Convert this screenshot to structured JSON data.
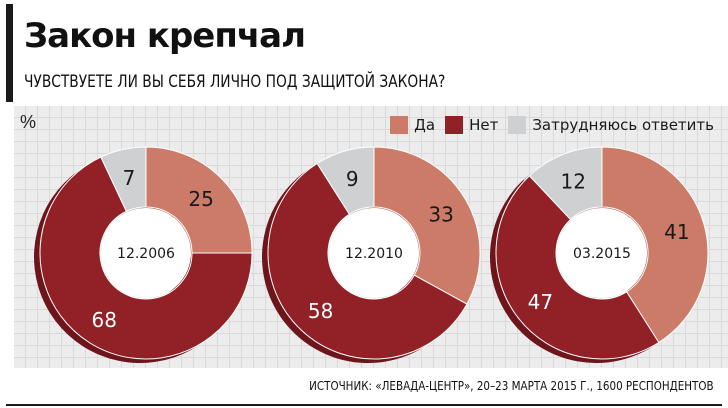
{
  "title": "Закон крепчал",
  "subtitle": "ЧУВСТВУЕТЕ ЛИ ВЫ СЕБЯ ЛИЧНО ПОД ЗАЩИТОЙ ЗАКОНА?",
  "unit_label": "%",
  "source": "ИСТОЧНИК: «ЛЕВАДА-ЦЕНТР», 20–23 МАРТА 2015 Г., 1600 РЕСПОНДЕНТОВ",
  "colors": {
    "yes": "#cc7b68",
    "no": "#922027",
    "no_side": "#6e151b",
    "yes_side": "#a55f4f",
    "hard": "#cfd0d2",
    "hard_side": "#a9aaac",
    "background_grid": "#ececec"
  },
  "chart_data": {
    "type": "pie",
    "legend": [
      {
        "key": "yes",
        "label": "Да"
      },
      {
        "key": "no",
        "label": "Нет"
      },
      {
        "key": "hard",
        "label": "Затрудняюсь ответить"
      }
    ],
    "legend_position": "top-right",
    "categories": [
      "Да",
      "Нет",
      "Затрудняюсь ответить"
    ],
    "charts": [
      {
        "label": "12.2006",
        "values": {
          "yes": 25,
          "no": 68,
          "hard": 7
        }
      },
      {
        "label": "12.2010",
        "values": {
          "yes": 33,
          "no": 58,
          "hard": 9
        }
      },
      {
        "label": "03.2015",
        "values": {
          "yes": 41,
          "no": 47,
          "hard": 12
        }
      }
    ]
  }
}
